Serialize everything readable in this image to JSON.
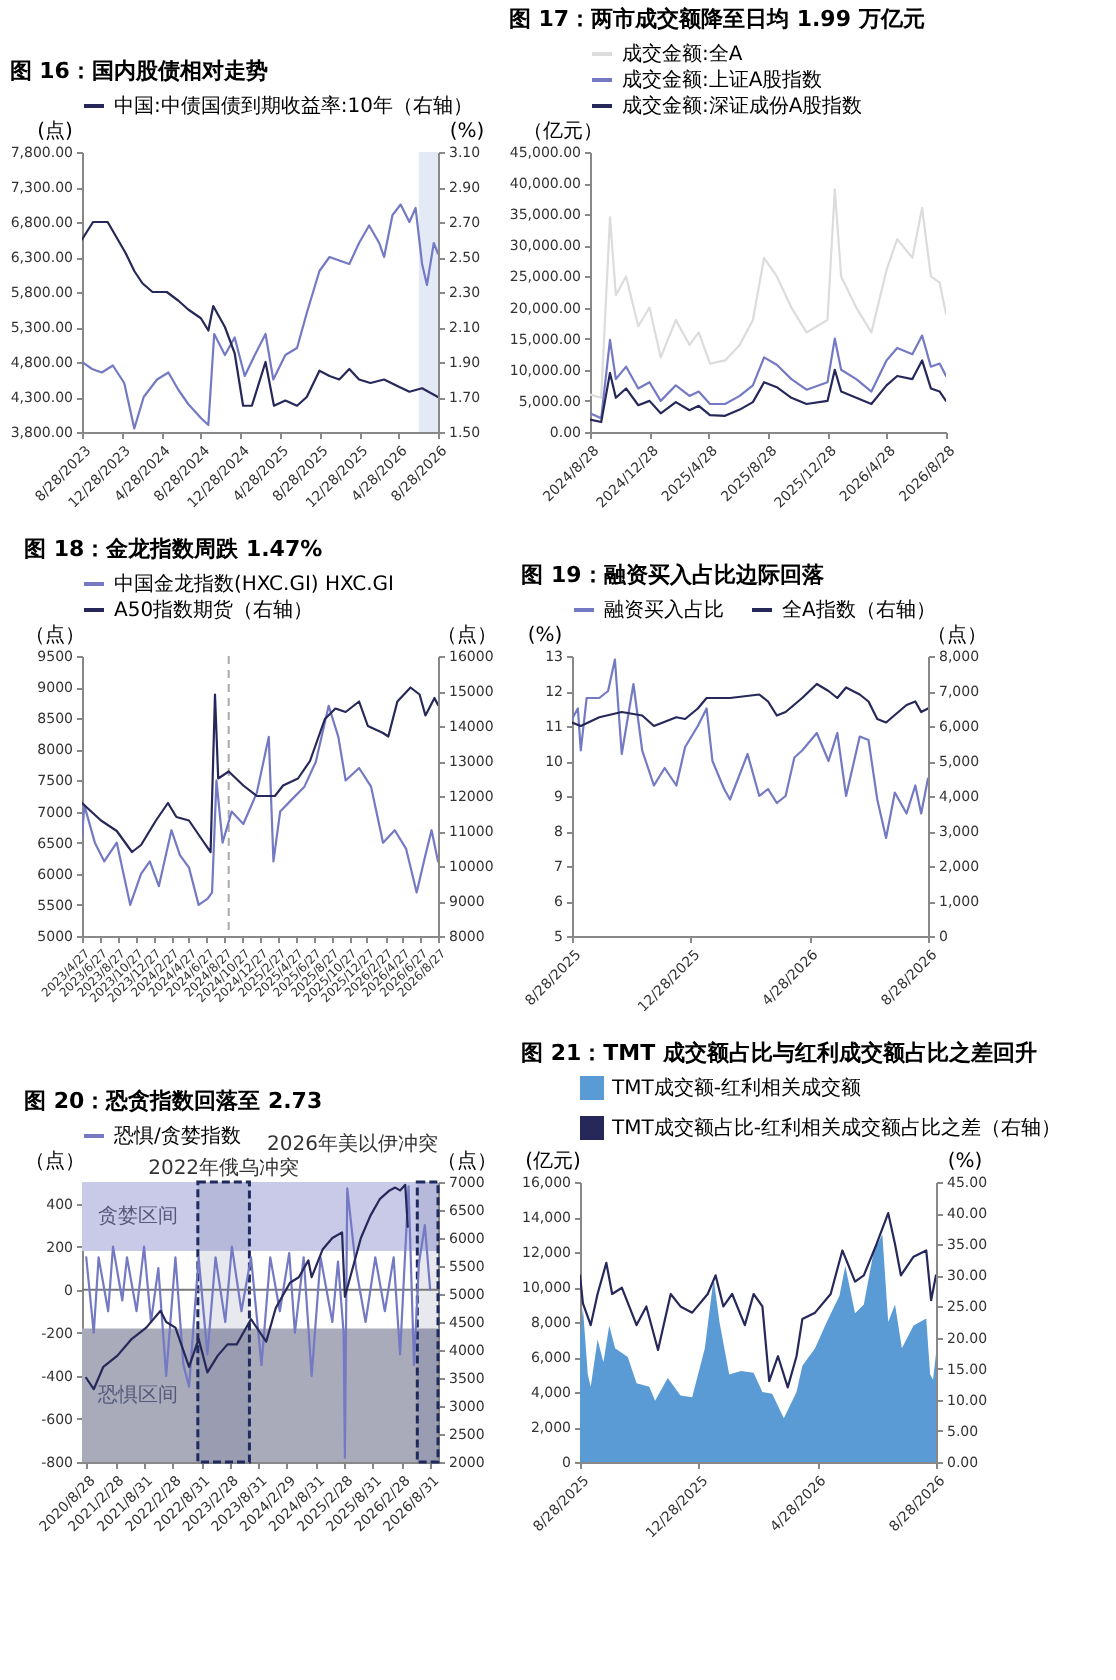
{
  "chart_data": [
    {
      "type": "line",
      "title": "图 16：国内股债相对走势",
      "ylabel": "(点)",
      "y2label": "(%)",
      "legend": "top",
      "xlim": [
        "2023-08-28",
        "2026-08-28"
      ],
      "xticks": [
        {
          "value": "2023-08-28",
          "label": "8/28/2023"
        },
        {
          "value": "2023-12-28",
          "label": "12/28/2023"
        },
        {
          "value": "2024-04-28",
          "label": "4/28/2024"
        },
        {
          "value": "2024-08-28",
          "label": "8/28/2024"
        },
        {
          "value": "2024-12-28",
          "label": "12/28/2024"
        },
        {
          "value": "2025-04-28",
          "label": "4/28/2025"
        },
        {
          "value": "2025-08-28",
          "label": "8/28/2025"
        },
        {
          "value": "2025-12-28",
          "label": "12/28/2025"
        },
        {
          "value": "2026-04-28",
          "label": "4/28/2026"
        },
        {
          "value": "2026-08-28",
          "label": "8/28/2026"
        }
      ],
      "ylim": [
        3800,
        7800
      ],
      "yticks": [
        {
          "value": 3800,
          "label": "3,800.00"
        },
        {
          "value": 4300,
          "label": "4,300.00"
        },
        {
          "value": 4800,
          "label": "4,800.00"
        },
        {
          "value": 5300,
          "label": "5,300.00"
        },
        {
          "value": 5800,
          "label": "5,800.00"
        },
        {
          "value": 6300,
          "label": "6,300.00"
        },
        {
          "value": 6800,
          "label": "6,800.00"
        },
        {
          "value": 7300,
          "label": "7,300.00"
        },
        {
          "value": 7800,
          "label": "7,800.00"
        }
      ],
      "y2lim": [
        1.5,
        3.1
      ],
      "y2ticks": [
        {
          "value": 1.5,
          "label": "1.50"
        },
        {
          "value": 1.7,
          "label": "1.70"
        },
        {
          "value": 1.9,
          "label": "1.90"
        },
        {
          "value": 2.1,
          "label": "2.10"
        },
        {
          "value": 2.3,
          "label": "2.30"
        },
        {
          "value": 2.5,
          "label": "2.50"
        },
        {
          "value": 2.7,
          "label": "2.70"
        },
        {
          "value": 2.9,
          "label": "2.90"
        },
        {
          "value": 3.1,
          "label": "3.10"
        }
      ],
      "bands": [
        {
          "axis": "x",
          "from": "2026-06-30",
          "to": "2026-08-28",
          "color": "#e3e9f5"
        }
      ],
      "series": [
        {
          "color": "#7479c4",
          "x": [
            "2023-08-28",
            "2023-09-28",
            "2023-10-28",
            "2023-12-01",
            "2024-01-05",
            "2024-02-05",
            "2024-03-05",
            "2024-04-15",
            "2024-05-20",
            "2024-06-20",
            "2024-07-20",
            "2024-08-28",
            "2024-09-20",
            "2024-10-08",
            "2024-11-10",
            "2024-12-10",
            "2025-01-10",
            "2025-02-10",
            "2025-03-15",
            "2025-04-08",
            "2025-05-15",
            "2025-06-20",
            "2025-07-20",
            "2025-08-28",
            "2025-09-28",
            "2025-10-28",
            "2025-11-28",
            "2025-12-28",
            "2026-01-28",
            "2026-02-28",
            "2026-03-15",
            "2026-04-10",
            "2026-05-05",
            "2026-06-01",
            "2026-06-20",
            "2026-07-10",
            "2026-07-25",
            "2026-08-15",
            "2026-08-28"
          ],
          "values": [
            4800,
            4700,
            4650,
            4750,
            4500,
            3850,
            4300,
            4550,
            4650,
            4400,
            4200,
            4000,
            3900,
            5200,
            4900,
            5150,
            4600,
            4900,
            5200,
            4550,
            4900,
            5000,
            5500,
            6100,
            6300,
            6250,
            6200,
            6500,
            6750,
            6500,
            6300,
            6900,
            7050,
            6800,
            7000,
            6200,
            5900,
            6500,
            6350
          ]
        },
        {
          "name": "中国:中债国债到期收益率:10年（右轴）",
          "axis": "y2",
          "color": "#262859",
          "x": [
            "2023-08-28",
            "2023-10-01",
            "2023-11-15",
            "2023-12-10",
            "2024-01-10",
            "2024-02-05",
            "2024-03-01",
            "2024-04-01",
            "2024-05-15",
            "2024-06-20",
            "2024-07-20",
            "2024-08-28",
            "2024-09-20",
            "2024-10-05",
            "2024-11-10",
            "2024-12-10",
            "2025-01-05",
            "2025-02-01",
            "2025-03-15",
            "2025-04-10",
            "2025-05-15",
            "2025-06-20",
            "2025-07-20",
            "2025-08-28",
            "2025-09-28",
            "2025-10-28",
            "2025-11-28",
            "2025-12-28",
            "2026-02-01",
            "2026-03-15",
            "2026-04-28",
            "2026-06-01",
            "2026-07-10",
            "2026-08-28"
          ],
          "values": [
            2.6,
            2.7,
            2.7,
            2.62,
            2.52,
            2.42,
            2.35,
            2.3,
            2.3,
            2.25,
            2.2,
            2.15,
            2.08,
            2.22,
            2.1,
            1.95,
            1.65,
            1.65,
            1.9,
            1.65,
            1.68,
            1.65,
            1.7,
            1.85,
            1.82,
            1.8,
            1.86,
            1.8,
            1.78,
            1.8,
            1.76,
            1.73,
            1.75,
            1.7
          ]
        }
      ]
    },
    {
      "type": "line",
      "title": "图 17：两市成交额降至日均 1.99 万亿元",
      "ylabel": "（亿元）",
      "legend": "top",
      "xlim": [
        "2024-08-28",
        "2026-08-28"
      ],
      "xticks": [
        {
          "value": "2024-08-28",
          "label": "2024/8/28"
        },
        {
          "value": "2024-12-28",
          "label": "2024/12/28"
        },
        {
          "value": "2025-04-28",
          "label": "2025/4/28"
        },
        {
          "value": "2025-08-28",
          "label": "2025/8/28"
        },
        {
          "value": "2025-12-28",
          "label": "2025/12/28"
        },
        {
          "value": "2026-04-28",
          "label": "2026/4/28"
        },
        {
          "value": "2026-08-28",
          "label": "2026/8/28"
        }
      ],
      "ylim": [
        0,
        45000
      ],
      "yticks": [
        {
          "value": 0,
          "label": "0.00"
        },
        {
          "value": 5000,
          "label": "5,000.00"
        },
        {
          "value": 10000,
          "label": "10,000.00"
        },
        {
          "value": 15000,
          "label": "15,000.00"
        },
        {
          "value": 20000,
          "label": "20,000.00"
        },
        {
          "value": 25000,
          "label": "25,000.00"
        },
        {
          "value": 30000,
          "label": "30,000.00"
        },
        {
          "value": 35000,
          "label": "35,000.00"
        },
        {
          "value": 40000,
          "label": "40,000.00"
        },
        {
          "value": 45000,
          "label": "45,000.00"
        }
      ],
      "series": [
        {
          "name": "成交金额:全A",
          "color": "#dcdcdc",
          "x": [
            "2024-08-28",
            "2024-09-20",
            "2024-10-08",
            "2024-10-20",
            "2024-11-10",
            "2024-12-05",
            "2024-12-28",
            "2025-01-20",
            "2025-02-20",
            "2025-03-20",
            "2025-04-08",
            "2025-05-01",
            "2025-06-01",
            "2025-07-01",
            "2025-07-28",
            "2025-08-20",
            "2025-09-15",
            "2025-10-15",
            "2025-11-15",
            "2025-12-28",
            "2026-01-12",
            "2026-01-25",
            "2026-02-25",
            "2026-03-28",
            "2026-04-28",
            "2026-05-20",
            "2026-06-20",
            "2026-07-10",
            "2026-07-28",
            "2026-08-15",
            "2026-08-28"
          ],
          "values": [
            6000,
            5500,
            34500,
            22000,
            25000,
            17000,
            20000,
            12000,
            18000,
            14000,
            16000,
            11000,
            11500,
            14000,
            18000,
            28000,
            25000,
            20000,
            16000,
            18000,
            39000,
            25000,
            20000,
            16000,
            26000,
            31000,
            28000,
            36000,
            25000,
            24000,
            19000
          ]
        },
        {
          "name": "成交金额:上证A股指数",
          "color": "#7479c4",
          "x": [
            "2024-08-28",
            "2024-09-20",
            "2024-10-08",
            "2024-10-20",
            "2024-11-10",
            "2024-12-05",
            "2024-12-28",
            "2025-01-20",
            "2025-02-20",
            "2025-03-20",
            "2025-04-08",
            "2025-05-01",
            "2025-06-01",
            "2025-07-01",
            "2025-07-28",
            "2025-08-20",
            "2025-09-15",
            "2025-10-15",
            "2025-11-15",
            "2025-12-28",
            "2026-01-12",
            "2026-01-25",
            "2026-02-25",
            "2026-03-28",
            "2026-04-28",
            "2026-05-20",
            "2026-06-20",
            "2026-07-10",
            "2026-07-28",
            "2026-08-15",
            "2026-08-28"
          ],
          "values": [
            3000,
            2200,
            14800,
            8500,
            10500,
            7000,
            8000,
            5000,
            7500,
            5800,
            6500,
            4500,
            4500,
            5800,
            7500,
            12000,
            10800,
            8500,
            6800,
            8000,
            15000,
            10000,
            8500,
            6500,
            11500,
            13500,
            12500,
            15500,
            10500,
            11000,
            9000
          ]
        },
        {
          "name": "成交金额:深证成份A股指数",
          "color": "#262859",
          "x": [
            "2024-08-28",
            "2024-09-20",
            "2024-10-08",
            "2024-10-20",
            "2024-11-10",
            "2024-12-05",
            "2024-12-28",
            "2025-01-20",
            "2025-02-20",
            "2025-03-20",
            "2025-04-08",
            "2025-05-01",
            "2025-06-01",
            "2025-07-01",
            "2025-07-28",
            "2025-08-20",
            "2025-09-15",
            "2025-10-15",
            "2025-11-15",
            "2025-12-28",
            "2026-01-12",
            "2026-01-25",
            "2026-02-25",
            "2026-03-28",
            "2026-04-28",
            "2026-05-20",
            "2026-06-20",
            "2026-07-10",
            "2026-07-28",
            "2026-08-15",
            "2026-08-28"
          ],
          "values": [
            2000,
            1600,
            9500,
            5500,
            7000,
            4300,
            5000,
            3000,
            4800,
            3500,
            4200,
            2700,
            2600,
            3600,
            4800,
            8000,
            7200,
            5500,
            4500,
            5000,
            10000,
            6500,
            5500,
            4500,
            7500,
            9000,
            8500,
            11500,
            7000,
            6500,
            5000
          ]
        }
      ]
    },
    {
      "type": "line",
      "title": "图 18：金龙指数周跌 1.47%",
      "ylabel": "（点）",
      "y2label": "（点）",
      "legend": "top",
      "xlim": [
        "2023-04-27",
        "2026-08-27"
      ],
      "xticks": [
        {
          "value": "2023-04-27",
          "label": "2023/4/27"
        },
        {
          "value": "2023-06-27",
          "label": "2023/6/27"
        },
        {
          "value": "2023-08-27",
          "label": "2023/8/27"
        },
        {
          "value": "2023-10-27",
          "label": "2023/10/27"
        },
        {
          "value": "2023-12-27",
          "label": "2023/12/27"
        },
        {
          "value": "2024-02-27",
          "label": "2024/2/27"
        },
        {
          "value": "2024-04-27",
          "label": "2024/4/27"
        },
        {
          "value": "2024-06-27",
          "label": "2024/6/27"
        },
        {
          "value": "2024-08-27",
          "label": "2024/8/27"
        },
        {
          "value": "2024-10-27",
          "label": "2024/10/27"
        },
        {
          "value": "2024-12-27",
          "label": "2024/12/27"
        },
        {
          "value": "2025-02-27",
          "label": "2025/2/27"
        },
        {
          "value": "2025-04-27",
          "label": "2025/4/27"
        },
        {
          "value": "2025-06-27",
          "label": "2025/6/27"
        },
        {
          "value": "2025-08-27",
          "label": "2025/8/27"
        },
        {
          "value": "2025-10-27",
          "label": "2025/10/27"
        },
        {
          "value": "2025-12-27",
          "label": "2025/12/27"
        },
        {
          "value": "2026-02-27",
          "label": "2026/2/27"
        },
        {
          "value": "2026-04-27",
          "label": "2026/4/27"
        },
        {
          "value": "2026-06-27",
          "label": "2026/6/27"
        },
        {
          "value": "2026-08-27",
          "label": "2026/8/27"
        }
      ],
      "ylim": [
        5000,
        9500
      ],
      "yticks": [
        5000,
        5500,
        6000,
        6500,
        7000,
        7500,
        8000,
        8500,
        9000,
        9500
      ],
      "y2lim": [
        8000,
        16000
      ],
      "y2ticks": [
        8000,
        9000,
        10000,
        11000,
        12000,
        13000,
        14000,
        15000,
        16000
      ],
      "ref_lines": [
        {
          "axis": "x",
          "value": "2024-09-10",
          "color": "#aaaaaa",
          "line_style": "dashed"
        }
      ],
      "series": [
        {
          "name": "中国金龙指数(HXC.GI) HXC.GI",
          "color": "#7479c4",
          "x": [
            "2023-04-27",
            "2023-05-05",
            "2023-06-10",
            "2023-07-12",
            "2023-08-24",
            "2023-10-09",
            "2023-11-15",
            "2023-12-15",
            "2024-01-15",
            "2024-02-27",
            "2024-03-27",
            "2024-04-27",
            "2024-05-30",
            "2024-06-30",
            "2024-07-15",
            "2024-07-30",
            "2024-08-20",
            "2024-09-20",
            "2024-10-30",
            "2024-12-15",
            "2025-01-25",
            "2025-02-10",
            "2025-03-05",
            "2025-04-15",
            "2025-05-27",
            "2025-07-05",
            "2025-08-18",
            "2025-09-20",
            "2025-10-15",
            "2025-11-30",
            "2026-01-10",
            "2026-02-20",
            "2026-04-01",
            "2026-05-10",
            "2026-06-15",
            "2026-07-15",
            "2026-08-05",
            "2026-08-27"
          ],
          "values": [
            6600,
            7100,
            6500,
            6200,
            6500,
            5500,
            6000,
            6200,
            5800,
            6700,
            6300,
            6100,
            5500,
            5600,
            5700,
            7500,
            6500,
            7000,
            6800,
            7300,
            8200,
            6200,
            7000,
            7200,
            7400,
            7800,
            8700,
            8200,
            7500,
            7700,
            7400,
            6500,
            6700,
            6400,
            5700,
            6300,
            6700,
            6200
          ]
        },
        {
          "name": "A50指数期货（右轴）",
          "axis": "y2",
          "color": "#262859",
          "x": [
            "2023-04-27",
            "2023-07-01",
            "2023-08-24",
            "2023-10-15",
            "2023-11-15",
            "2024-01-05",
            "2024-02-15",
            "2024-03-15",
            "2024-04-27",
            "2024-06-15",
            "2024-07-10",
            "2024-07-25",
            "2024-08-05",
            "2024-09-10",
            "2024-10-30",
            "2024-12-15",
            "2025-02-15",
            "2025-03-15",
            "2025-05-05",
            "2025-06-15",
            "2025-08-05",
            "2025-09-10",
            "2025-10-15",
            "2025-11-30",
            "2025-12-30",
            "2026-02-20",
            "2026-03-10",
            "2026-04-10",
            "2026-05-25",
            "2026-06-25",
            "2026-07-15",
            "2026-08-15",
            "2026-08-27"
          ],
          "values": [
            11800,
            11300,
            11000,
            10400,
            10600,
            11300,
            11800,
            11400,
            11300,
            10700,
            10400,
            14900,
            12500,
            12700,
            12300,
            12000,
            12000,
            12300,
            12500,
            13000,
            14200,
            14500,
            14400,
            14700,
            14000,
            13800,
            13700,
            14700,
            15100,
            14900,
            14300,
            14800,
            14600
          ]
        }
      ]
    },
    {
      "type": "line",
      "title": "图 19：融资买入占比边际回落",
      "ylabel": "(%)",
      "y2label": "（点）",
      "legend": "top",
      "xlim": [
        "2025-08-28",
        "2026-08-28"
      ],
      "xticks": [
        {
          "value": "2025-08-28",
          "label": "8/28/2025"
        },
        {
          "value": "2025-12-28",
          "label": "12/28/2025"
        },
        {
          "value": "2026-04-28",
          "label": "4/28/2026"
        },
        {
          "value": "2026-08-28",
          "label": "8/28/2026"
        }
      ],
      "ylim": [
        5,
        13
      ],
      "yticks": [
        5,
        6,
        7,
        8,
        9,
        10,
        11,
        12,
        13
      ],
      "y2lim": [
        0,
        8000
      ],
      "y2ticks": [
        0,
        {
          "value": 1000,
          "label": "1,000"
        },
        {
          "value": 2000,
          "label": "2,000"
        },
        {
          "value": 3000,
          "label": "3,000"
        },
        {
          "value": 4000,
          "label": "4,000"
        },
        {
          "value": 5000,
          "label": "5,000"
        },
        {
          "value": 6000,
          "label": "6,000"
        },
        {
          "value": 7000,
          "label": "7,000"
        },
        {
          "value": 8000,
          "label": "8,000"
        }
      ],
      "series": [
        {
          "name": "融资买入占比",
          "color": "#7479c4",
          "x": [
            "2025-08-28",
            "2025-09-03",
            "2025-09-06",
            "2025-09-12",
            "2025-09-25",
            "2025-10-04",
            "2025-10-11",
            "2025-10-18",
            "2025-10-30",
            "2025-11-08",
            "2025-11-20",
            "2025-12-01",
            "2025-12-13",
            "2025-12-22",
            "2026-01-04",
            "2026-01-13",
            "2026-01-19",
            "2026-01-31",
            "2026-02-06",
            "2026-02-24",
            "2026-03-08",
            "2026-03-17",
            "2026-03-26",
            "2026-04-04",
            "2026-04-13",
            "2026-04-21",
            "2026-05-06",
            "2026-05-18",
            "2026-05-27",
            "2026-06-05",
            "2026-06-19",
            "2026-06-28",
            "2026-07-07",
            "2026-07-16",
            "2026-07-25",
            "2026-08-06",
            "2026-08-15",
            "2026-08-21",
            "2026-08-28"
          ],
          "values": [
            11.2,
            11.5,
            10.3,
            11.8,
            11.8,
            12.0,
            12.9,
            10.2,
            12.2,
            10.3,
            9.3,
            9.8,
            9.3,
            10.4,
            11.0,
            11.5,
            10.0,
            9.2,
            8.9,
            10.2,
            9.0,
            9.2,
            8.8,
            9.0,
            10.1,
            10.3,
            10.8,
            10.0,
            10.8,
            9.0,
            10.7,
            10.6,
            8.9,
            7.8,
            9.1,
            8.5,
            9.3,
            8.5,
            9.5
          ]
        },
        {
          "name": "全A指数（右轴）",
          "axis": "y2",
          "color": "#262859",
          "x": [
            "2025-08-28",
            "2025-09-06",
            "2025-09-25",
            "2025-10-18",
            "2025-11-08",
            "2025-11-20",
            "2025-12-13",
            "2025-12-22",
            "2026-01-04",
            "2026-01-13",
            "2026-02-06",
            "2026-03-08",
            "2026-03-17",
            "2026-03-26",
            "2026-04-04",
            "2026-04-21",
            "2026-05-06",
            "2026-05-18",
            "2026-05-27",
            "2026-06-05",
            "2026-06-19",
            "2026-06-28",
            "2026-07-07",
            "2026-07-16",
            "2026-08-06",
            "2026-08-15",
            "2026-08-21",
            "2026-08-28"
          ],
          "values": [
            6100,
            6000,
            6250,
            6400,
            6300,
            6000,
            6250,
            6200,
            6500,
            6800,
            6800,
            6900,
            6700,
            6300,
            6400,
            6800,
            7200,
            7000,
            6800,
            7100,
            6900,
            6700,
            6200,
            6100,
            6600,
            6700,
            6400,
            6500
          ]
        }
      ]
    },
    {
      "type": "line",
      "title": "图 20：恐贪指数回落至 2.73",
      "ylabel": "（点）",
      "y2label": "（点）",
      "legend": "top",
      "xlim": [
        "2020-08-01",
        "2026-10-20"
      ],
      "xticks": [
        {
          "value": "2020-08-28",
          "label": "2020/8/28"
        },
        {
          "value": "2021-02-28",
          "label": "2021/2/28"
        },
        {
          "value": "2021-08-31",
          "label": "2021/8/31"
        },
        {
          "value": "2022-02-28",
          "label": "2022/2/28"
        },
        {
          "value": "2022-08-31",
          "label": "2022/8/31"
        },
        {
          "value": "2023-02-28",
          "label": "2023/2/28"
        },
        {
          "value": "2023-08-31",
          "label": "2023/8/31"
        },
        {
          "value": "2024-02-29",
          "label": "2024/2/29"
        },
        {
          "value": "2024-08-31",
          "label": "2024/8/31"
        },
        {
          "value": "2025-02-28",
          "label": "2025/2/28"
        },
        {
          "value": "2025-08-31",
          "label": "2025/8/31"
        },
        {
          "value": "2026-02-28",
          "label": "2026/2/28"
        },
        {
          "value": "2026-08-31",
          "label": "2026/8/31"
        }
      ],
      "ylim": [
        -800,
        500
      ],
      "yticks": [
        -800,
        -600,
        -400,
        -200,
        0,
        200,
        400
      ],
      "y2lim": [
        2000,
        7000
      ],
      "y2ticks": [
        2000,
        2500,
        3000,
        3500,
        4000,
        4500,
        5000,
        5500,
        6000,
        6500,
        7000
      ],
      "bands": [
        {
          "axis": "y",
          "from": 180,
          "to": 500,
          "label": "贪婪区间",
          "color": "#c8cae8"
        },
        {
          "axis": "y",
          "from": -800,
          "to": -180,
          "label": "恐惧区间",
          "color": "#a9abbb"
        },
        {
          "axis": "x",
          "from": "2022-08-10",
          "to": "2023-07-05",
          "label": "2022年俄乌冲突",
          "color": "#1f2a5e"
        },
        {
          "axis": "x",
          "from": "2026-06-10",
          "to": "2026-10-20",
          "label": "2026年美以伊冲突",
          "color": "#1f2a5e"
        }
      ],
      "ref_lines": [
        {
          "axis": "y",
          "value": 0,
          "color": "#777777"
        }
      ],
      "series": [
        {
          "name": "恐惧/贪婪指数",
          "color": "#7479c4",
          "x": [
            "2020-08-28",
            "2020-10-15",
            "2020-11-15",
            "2021-01-15",
            "2021-02-15",
            "2021-04-15",
            "2021-05-15",
            "2021-07-15",
            "2021-09-01",
            "2021-10-15",
            "2021-12-01",
            "2022-01-20",
            "2022-03-20",
            "2022-05-10",
            "2022-06-15",
            "2022-08-15",
            "2022-10-10",
            "2022-12-01",
            "2023-02-01",
            "2023-03-15",
            "2023-05-15",
            "2023-07-15",
            "2023-09-20",
            "2023-11-15",
            "2024-01-15",
            "2024-03-15",
            "2024-04-20",
            "2024-06-15",
            "2024-08-05",
            "2024-10-01",
            "2024-12-15",
            "2025-01-20",
            "2025-02-25",
            "2025-03-05",
            "2025-03-20",
            "2025-05-15",
            "2025-07-15",
            "2025-09-15",
            "2025-11-15",
            "2026-01-10",
            "2026-02-20",
            "2026-04-15",
            "2026-05-20",
            "2026-06-20",
            "2026-07-28",
            "2026-08-31"
          ],
          "values": [
            150,
            -200,
            150,
            -100,
            200,
            -50,
            150,
            -100,
            200,
            -150,
            100,
            -400,
            150,
            -350,
            -450,
            150,
            -300,
            150,
            -150,
            200,
            -100,
            150,
            -350,
            150,
            -100,
            170,
            -200,
            150,
            -400,
            150,
            -150,
            130,
            -200,
            -780,
            470,
            100,
            -150,
            150,
            -100,
            150,
            -300,
            480,
            -350,
            120,
            300,
            0
          ]
        },
        {
          "axis": "y2",
          "color": "#262859",
          "x": [
            "2020-08-28",
            "2020-10-15",
            "2020-12-15",
            "2021-03-15",
            "2021-06-15",
            "2021-09-15",
            "2021-12-15",
            "2022-01-20",
            "2022-03-20",
            "2022-06-15",
            "2022-08-15",
            "2022-10-10",
            "2022-12-15",
            "2023-02-15",
            "2023-04-15",
            "2023-07-15",
            "2023-10-20",
            "2023-12-20",
            "2024-03-20",
            "2024-05-15",
            "2024-07-15",
            "2024-08-05",
            "2024-10-15",
            "2024-12-15",
            "2025-02-15",
            "2025-03-05",
            "2025-06-15",
            "2025-08-15",
            "2025-10-15",
            "2025-12-15",
            "2026-01-20",
            "2026-02-20",
            "2026-03-25",
            "2026-04-10"
          ],
          "values": [
            3500,
            3300,
            3700,
            3900,
            4200,
            4400,
            4700,
            4500,
            4400,
            3700,
            4200,
            3600,
            3900,
            4100,
            4100,
            4550,
            4150,
            4750,
            5200,
            5300,
            5600,
            5300,
            5800,
            6000,
            6100,
            4950,
            6000,
            6400,
            6700,
            6850,
            6900,
            6850,
            6950,
            6200
          ]
        }
      ]
    },
    {
      "type": "area",
      "title": "图 21：TMT 成交额占比与红利成交额占比之差回升",
      "ylabel": "(亿元)",
      "y2label": "(%)",
      "legend": "top",
      "xlim": [
        "2025-08-28",
        "2026-08-28"
      ],
      "xticks": [
        {
          "value": "2025-08-28",
          "label": "8/28/2025"
        },
        {
          "value": "2025-12-28",
          "label": "12/28/2025"
        },
        {
          "value": "2026-04-28",
          "label": "4/28/2026"
        },
        {
          "value": "2026-08-28",
          "label": "8/28/2026"
        }
      ],
      "ylim": [
        0,
        16000
      ],
      "yticks": [
        0,
        {
          "value": 2000,
          "label": "2,000"
        },
        {
          "value": 4000,
          "label": "4,000"
        },
        {
          "value": 6000,
          "label": "6,000"
        },
        {
          "value": 8000,
          "label": "8,000"
        },
        {
          "value": 10000,
          "label": "10,000"
        },
        {
          "value": 12000,
          "label": "12,000"
        },
        {
          "value": 14000,
          "label": "14,000"
        },
        {
          "value": 16000,
          "label": "16,000"
        }
      ],
      "y2lim": [
        0,
        45
      ],
      "y2ticks": [
        {
          "value": 0,
          "label": "0.00"
        },
        {
          "value": 5,
          "label": "5.00"
        },
        {
          "value": 10,
          "label": "10.00"
        },
        {
          "value": 15,
          "label": "15.00"
        },
        {
          "value": 20,
          "label": "20.00"
        },
        {
          "value": 25,
          "label": "25.00"
        },
        {
          "value": 30,
          "label": "30.00"
        },
        {
          "value": 35,
          "label": "35.00"
        },
        {
          "value": 40,
          "label": "40.00"
        },
        {
          "value": 45,
          "label": "45.00"
        }
      ],
      "series": [
        {
          "name": "TMT成交额-红利相关成交额",
          "type": "area",
          "color": "#5b9bd5",
          "x": [
            "2025-08-28",
            "2025-08-31",
            "2025-09-05",
            "2025-09-08",
            "2025-09-15",
            "2025-09-21",
            "2025-09-27",
            "2025-10-03",
            "2025-10-16",
            "2025-10-25",
            "2025-11-07",
            "2025-11-13",
            "2025-11-26",
            "2025-12-09",
            "2025-12-21",
            "2026-01-03",
            "2026-01-12",
            "2026-01-18",
            "2026-01-28",
            "2026-02-09",
            "2026-02-22",
            "2026-03-03",
            "2026-03-13",
            "2026-03-25",
            "2026-04-07",
            "2026-04-13",
            "2026-04-26",
            "2026-05-08",
            "2026-05-21",
            "2026-05-27",
            "2026-06-06",
            "2026-06-15",
            "2026-06-25",
            "2026-07-04",
            "2026-07-10",
            "2026-07-17",
            "2026-07-24",
            "2026-08-05",
            "2026-08-18",
            "2026-08-22",
            "2026-08-25",
            "2026-08-28"
          ],
          "values": [
            7200,
            8800,
            5000,
            4300,
            7000,
            5700,
            7800,
            6500,
            6000,
            4500,
            4300,
            3500,
            4800,
            3800,
            3700,
            6500,
            10500,
            8000,
            5000,
            5200,
            5100,
            4000,
            3900,
            2500,
            4000,
            5500,
            6500,
            8000,
            9500,
            11200,
            8500,
            9000,
            12000,
            13000,
            8000,
            9000,
            6500,
            7800,
            8200,
            5000,
            4700,
            6200
          ]
        },
        {
          "name": "TMT成交额占比-红利相关成交额占比之差（右轴）",
          "type": "line",
          "axis": "y2",
          "color": "#262859",
          "x": [
            "2025-08-28",
            "2025-08-31",
            "2025-09-08",
            "2025-09-15",
            "2025-09-24",
            "2025-09-30",
            "2025-10-10",
            "2025-10-25",
            "2025-11-04",
            "2025-11-16",
            "2025-11-29",
            "2025-12-09",
            "2025-12-21",
            "2026-01-06",
            "2026-01-14",
            "2026-01-22",
            "2026-01-31",
            "2026-02-13",
            "2026-02-22",
            "2026-03-03",
            "2026-03-10",
            "2026-03-19",
            "2026-03-29",
            "2026-04-07",
            "2026-04-13",
            "2026-04-26",
            "2026-05-12",
            "2026-05-24",
            "2026-06-06",
            "2026-06-15",
            "2026-06-28",
            "2026-07-10",
            "2026-07-17",
            "2026-07-23",
            "2026-08-05",
            "2026-08-18",
            "2026-08-23",
            "2026-08-28"
          ],
          "values": [
            30,
            25.5,
            22,
            27,
            32,
            27,
            28,
            22,
            25,
            18,
            27,
            25,
            24,
            27,
            30,
            25,
            27,
            22,
            27,
            25,
            13,
            17,
            12,
            17,
            23,
            24,
            27,
            34,
            29,
            30,
            35,
            40,
            35,
            30,
            33,
            34,
            26,
            30
          ]
        }
      ]
    }
  ]
}
